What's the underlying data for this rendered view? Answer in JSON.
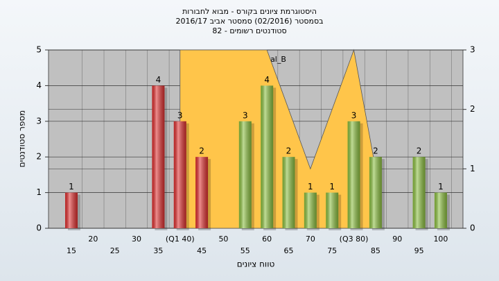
{
  "chart_data": {
    "type": "bar",
    "title": "היסטוגרמת ציונים בקורס - מבוא לחבורות",
    "subtitle": "בסמסטר  (02/2016)  סמסטר אביב 2016/17",
    "subtitle2": "סטודנטים רשומים - 82",
    "annotation": "במשימה : Final_B",
    "x_label": "טווח ציונים",
    "y_label": "מספר סטודנטים",
    "categories": [
      "15",
      "20",
      "25",
      "30",
      "35",
      "(Q1 40)",
      "45",
      "50",
      "55",
      "60",
      "65",
      "70",
      "75",
      "(Q3 80)",
      "85",
      "90",
      "95",
      "100"
    ],
    "values": [
      1,
      0,
      0,
      0,
      4,
      3,
      2,
      0,
      3,
      4,
      2,
      1,
      1,
      3,
      2,
      0,
      2,
      1
    ],
    "colors": [
      "#e03030",
      "#e03030",
      "#e03030",
      "#e03030",
      "#e03030",
      "#e03030",
      "#e03030",
      "#8cc040",
      "#8cc040",
      "#8cc040",
      "#8cc040",
      "#8cc040",
      "#8cc040",
      "#8cc040",
      "#8cc040",
      "#8cc040",
      "#8cc040",
      "#8cc040"
    ],
    "area": {
      "axis": "y2",
      "color": "#ffc54a",
      "values": [
        null,
        null,
        null,
        null,
        null,
        3,
        3,
        3,
        3,
        3,
        2,
        1,
        2,
        3,
        1,
        null,
        null,
        null
      ]
    },
    "ylim": [
      0,
      5
    ],
    "yticks": [
      0,
      1,
      2,
      3,
      4,
      5
    ],
    "y2lim": [
      0,
      3
    ],
    "y2ticks": [
      0,
      1,
      2,
      3
    ],
    "grid": true
  }
}
